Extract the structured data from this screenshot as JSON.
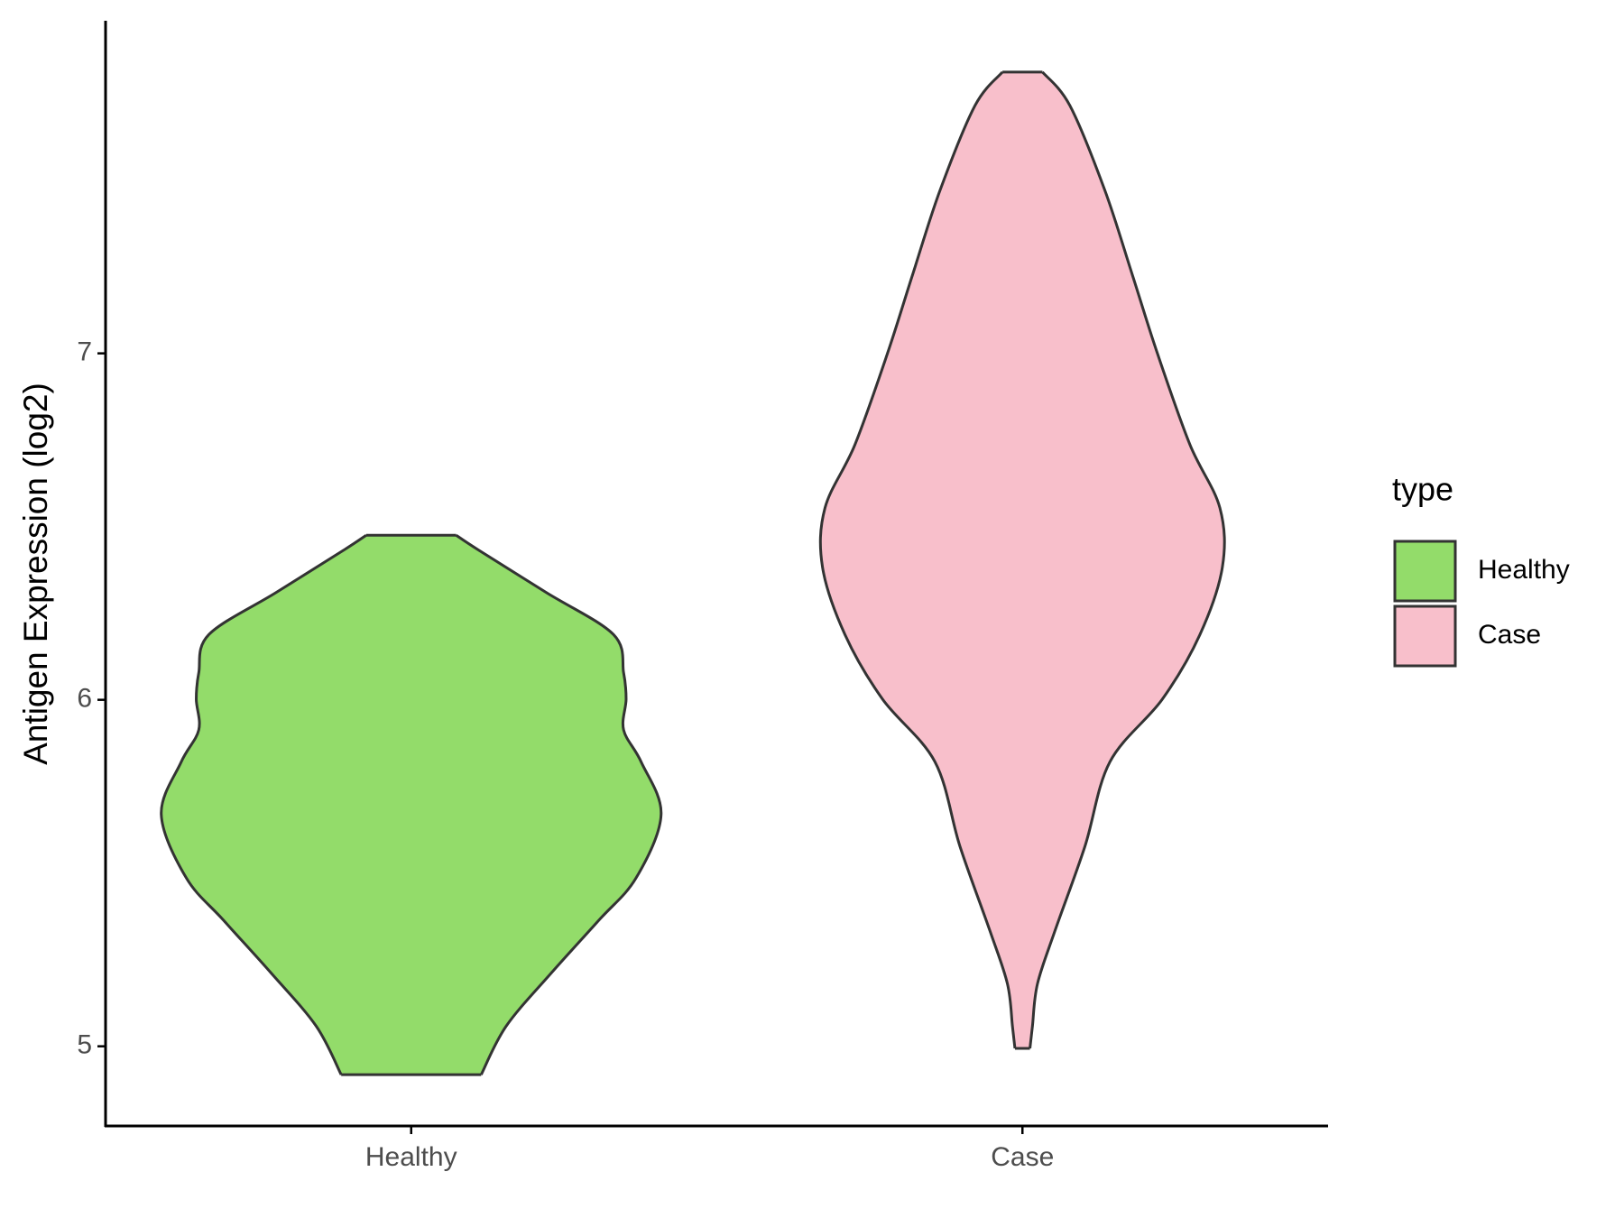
{
  "chart_data": {
    "type": "violin",
    "ylabel": "Antigen Expression (log2)",
    "categories": [
      "Healthy",
      "Case"
    ],
    "legend_title": "type",
    "legend_position": "right",
    "ylim": [
      4.77,
      7.96
    ],
    "yticks": [
      5,
      6,
      7
    ],
    "grid": false,
    "series": [
      {
        "name": "Healthy",
        "color": "#93dc6a",
        "y": [
          6.475,
          6.432,
          6.31,
          6.188,
          6.078,
          6.002,
          5.913,
          5.821,
          5.669,
          5.486,
          5.363,
          5.211,
          5.058,
          4.918
        ],
        "density": [
          0.18,
          0.27,
          0.54,
          0.81,
          0.85,
          0.86,
          0.85,
          0.92,
          1.0,
          0.9,
          0.75,
          0.56,
          0.38,
          0.28
        ]
      },
      {
        "name": "Case",
        "color": "#f8bfcb",
        "y": [
          7.812,
          7.715,
          7.47,
          7.226,
          7.0,
          6.737,
          6.554,
          6.383,
          6.188,
          6.002,
          5.821,
          5.577,
          5.333,
          5.18,
          5.058,
          4.994
        ],
        "density": [
          0.08,
          0.19,
          0.33,
          0.44,
          0.54,
          0.67,
          0.79,
          0.8,
          0.71,
          0.56,
          0.35,
          0.25,
          0.13,
          0.06,
          0.04,
          0.03
        ]
      }
    ]
  }
}
